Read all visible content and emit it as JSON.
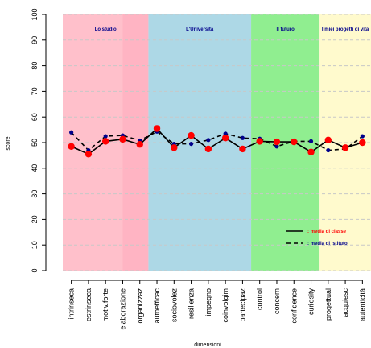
{
  "chart_data": {
    "type": "line",
    "xlabel": "dimensioni",
    "ylabel": "score",
    "ylim": [
      0,
      100
    ],
    "yticks": [
      0,
      10,
      20,
      30,
      40,
      50,
      60,
      70,
      80,
      90,
      100
    ],
    "grid": "horizontal dashed",
    "categories": [
      "intrinseca",
      "estrinseca",
      "motiv.forte",
      "elaborazione",
      "organizzaz",
      "autoefficac",
      "sociovolez",
      "resilienza",
      "impegno",
      "coinvolgim",
      "partecipaz",
      "control",
      "concern",
      "confidence",
      "curiosity",
      "progettual",
      "acquiesc",
      "autenticità"
    ],
    "bands": [
      {
        "label": "Lo studio",
        "start": 0,
        "end": 4,
        "color": "#ffc0cb"
      },
      {
        "label": "L'Università",
        "start": 5,
        "end": 10,
        "color": "#add8e6"
      },
      {
        "label": "Il futuro",
        "start": 11,
        "end": 14,
        "color": "#90ee90"
      },
      {
        "label": "I miei progetti di vita",
        "start": 15,
        "end": 17,
        "color": "#fffacd"
      }
    ],
    "series": [
      {
        "name": "media di classe",
        "line": "solid",
        "line_color": "#000000",
        "marker_color": "#ff0000",
        "label_color": "#ff0000",
        "values": [
          48.5,
          45.5,
          50.5,
          51.3,
          49.3,
          55.5,
          48.0,
          52.8,
          47.5,
          51.8,
          47.5,
          50.5,
          50.3,
          50.3,
          46.3,
          51.0,
          48.0,
          50.0
        ]
      },
      {
        "name": "media di istituto",
        "line": "dashed",
        "line_color": "#000000",
        "marker_color": "#00008b",
        "label_color": "#00008b",
        "values": [
          54.0,
          47.0,
          52.5,
          52.8,
          50.8,
          54.3,
          49.5,
          49.5,
          51.0,
          53.5,
          51.8,
          51.5,
          48.5,
          50.5,
          50.5,
          47.0,
          47.5,
          52.5
        ]
      }
    ],
    "legend_position": "bottom-right"
  }
}
